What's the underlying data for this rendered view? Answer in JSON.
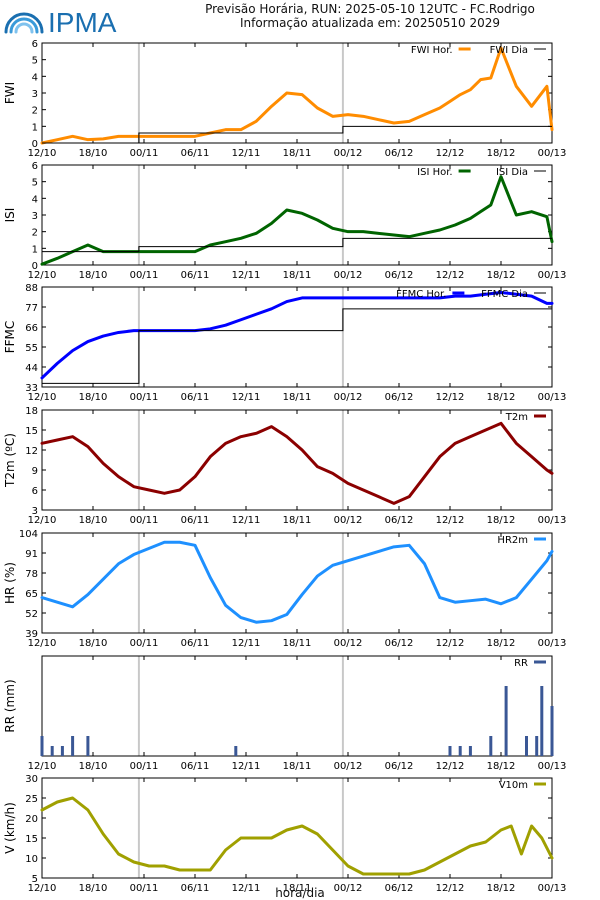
{
  "header": {
    "logo_text": "IPMA",
    "line1": "Previsão Horária, RUN: 2025-05-10 12UTC - FC.Rodrigo",
    "line2": "Informação atualizada em: 20250510 2029"
  },
  "x_axis_title": "hora/dia",
  "x_ticks": [
    "12/10",
    "18/10",
    "00/11",
    "06/11",
    "12/11",
    "18/11",
    "00/12",
    "06/12",
    "12/12",
    "18/12",
    "00/13"
  ],
  "colors": {
    "fwi": "#ff8c00",
    "isi": "#006400",
    "ffmc": "#0000ff",
    "t2m": "#8b0000",
    "hr2m": "#1e90ff",
    "rr": "#3a5795",
    "v10m": "#a0a000",
    "daily": "#000000",
    "grid": "#c8c8c8"
  },
  "chart_data": [
    {
      "type": "line",
      "ylabel": "FWI",
      "ylim": [
        0,
        6
      ],
      "yticks": [
        0,
        1,
        2,
        3,
        4,
        5,
        6
      ],
      "legend": [
        "FWI Hor.",
        "FWI Dia"
      ],
      "series": [
        {
          "name": "FWI Hor.",
          "color": "#ff8c00",
          "x": [
            0,
            3,
            6,
            9,
            12,
            15,
            18,
            21,
            24,
            27,
            30,
            33,
            36,
            39,
            42,
            45,
            48,
            51,
            54,
            57,
            60,
            63,
            66,
            69,
            72,
            75,
            78,
            80,
            82,
            84,
            86,
            88,
            90,
            93,
            96,
            99,
            100
          ],
          "y": [
            0.0,
            0.2,
            0.4,
            0.2,
            0.25,
            0.4,
            0.4,
            0.4,
            0.4,
            0.4,
            0.4,
            0.6,
            0.8,
            0.8,
            1.3,
            2.2,
            3.0,
            2.9,
            2.1,
            1.6,
            1.7,
            1.6,
            1.4,
            1.2,
            1.3,
            1.7,
            2.1,
            2.5,
            2.9,
            3.2,
            3.8,
            3.9,
            5.7,
            3.4,
            2.2,
            3.4,
            0.8
          ]
        },
        {
          "name": "FWI Dia",
          "color": "#000000",
          "step": true,
          "x": [
            0,
            19,
            19,
            59,
            59,
            100
          ],
          "y": [
            0,
            0,
            0.6,
            0.6,
            1.0,
            1.0
          ]
        }
      ]
    },
    {
      "type": "line",
      "ylabel": "ISI",
      "ylim": [
        0,
        6
      ],
      "yticks": [
        0,
        1,
        2,
        3,
        4,
        5,
        6
      ],
      "legend": [
        "ISI Hor.",
        "ISI Dia"
      ],
      "series": [
        {
          "name": "ISI Hor.",
          "color": "#006400",
          "x": [
            0,
            3,
            6,
            9,
            12,
            15,
            18,
            21,
            24,
            27,
            30,
            33,
            36,
            39,
            42,
            45,
            48,
            51,
            54,
            57,
            60,
            63,
            66,
            69,
            72,
            75,
            78,
            81,
            84,
            86,
            88,
            90,
            93,
            96,
            99,
            100
          ],
          "y": [
            0.05,
            0.4,
            0.8,
            1.2,
            0.8,
            0.8,
            0.8,
            0.8,
            0.8,
            0.8,
            0.8,
            1.2,
            1.4,
            1.6,
            1.9,
            2.5,
            3.3,
            3.1,
            2.7,
            2.2,
            2.0,
            2.0,
            1.9,
            1.8,
            1.7,
            1.9,
            2.1,
            2.4,
            2.8,
            3.2,
            3.6,
            5.3,
            3.0,
            3.2,
            2.9,
            1.4
          ]
        },
        {
          "name": "ISI Dia",
          "color": "#000000",
          "step": true,
          "x": [
            0,
            19,
            19,
            59,
            59,
            100
          ],
          "y": [
            0.8,
            0.8,
            1.1,
            1.1,
            1.6,
            1.6
          ]
        }
      ]
    },
    {
      "type": "line",
      "ylabel": "FFMC",
      "ylim": [
        33,
        88
      ],
      "yticks": [
        33,
        44,
        55,
        66,
        77,
        88
      ],
      "legend": [
        "FFMC Hor.",
        "FFMC Dia"
      ],
      "series": [
        {
          "name": "FFMC Hor.",
          "color": "#0000ff",
          "x": [
            0,
            3,
            6,
            9,
            12,
            15,
            18,
            21,
            24,
            27,
            30,
            33,
            36,
            39,
            42,
            45,
            48,
            51,
            54,
            57,
            60,
            63,
            66,
            69,
            72,
            75,
            78,
            81,
            84,
            87,
            90,
            93,
            96,
            99,
            100
          ],
          "y": [
            38,
            46,
            53,
            58,
            61,
            63,
            64,
            64,
            64,
            64,
            64,
            65,
            67,
            70,
            73,
            76,
            80,
            82,
            82,
            82,
            82,
            82,
            82,
            82,
            82,
            82,
            82,
            83,
            83,
            84,
            85,
            84,
            83,
            79,
            79
          ]
        },
        {
          "name": "FFMC Dia",
          "color": "#000000",
          "step": true,
          "x": [
            0,
            19,
            19,
            59,
            59,
            100
          ],
          "y": [
            35,
            35,
            64,
            64,
            76,
            76
          ]
        }
      ]
    },
    {
      "type": "line",
      "ylabel": "T2m (ºC)",
      "ylim": [
        3,
        18
      ],
      "yticks": [
        3,
        6,
        9,
        12,
        15,
        18
      ],
      "legend": [
        "T2m"
      ],
      "series": [
        {
          "name": "T2m",
          "color": "#8b0000",
          "x": [
            0,
            3,
            6,
            9,
            12,
            15,
            18,
            21,
            24,
            27,
            30,
            33,
            36,
            39,
            42,
            45,
            48,
            51,
            54,
            57,
            60,
            63,
            66,
            69,
            72,
            75,
            78,
            81,
            84,
            87,
            90,
            93,
            96,
            99,
            100
          ],
          "y": [
            13,
            13.5,
            14,
            12.5,
            10,
            8,
            6.5,
            6,
            5.5,
            6,
            8,
            11,
            13,
            14,
            14.5,
            15.5,
            14,
            12,
            9.5,
            8.5,
            7,
            6,
            5,
            4,
            5,
            8,
            11,
            13,
            14,
            15,
            16,
            13,
            11,
            9,
            8.5
          ]
        }
      ]
    },
    {
      "type": "line",
      "ylabel": "HR (%)",
      "ylim": [
        39,
        104
      ],
      "yticks": [
        39,
        52,
        65,
        78,
        91,
        104
      ],
      "legend": [
        "HR2m"
      ],
      "series": [
        {
          "name": "HR2m",
          "color": "#1e90ff",
          "x": [
            0,
            3,
            6,
            9,
            12,
            15,
            18,
            21,
            24,
            27,
            30,
            33,
            36,
            39,
            42,
            45,
            48,
            51,
            54,
            57,
            60,
            63,
            66,
            69,
            72,
            75,
            78,
            81,
            84,
            87,
            90,
            93,
            96,
            99,
            100
          ],
          "y": [
            62,
            59,
            56,
            64,
            74,
            84,
            90,
            94,
            98,
            98,
            96,
            75,
            57,
            49,
            46,
            47,
            51,
            64,
            76,
            83,
            86,
            89,
            92,
            95,
            96,
            84,
            62,
            59,
            60,
            61,
            58,
            62,
            74,
            86,
            92
          ]
        }
      ]
    },
    {
      "type": "bar",
      "ylabel": "RR (mm)",
      "ylim": [
        0,
        1
      ],
      "legend": [
        "RR"
      ],
      "series": [
        {
          "name": "RR",
          "color": "#3a5795",
          "x": [
            0,
            2,
            4,
            6,
            9,
            38,
            80,
            82,
            84,
            88,
            91,
            95,
            97,
            98,
            100
          ],
          "values": [
            0.2,
            0.1,
            0.1,
            0.2,
            0.2,
            0.1,
            0.1,
            0.1,
            0.1,
            0.2,
            0.7,
            0.2,
            0.2,
            0.7,
            0.5
          ]
        }
      ]
    },
    {
      "type": "line",
      "ylabel": "V (km/h)",
      "ylim": [
        5,
        30
      ],
      "yticks": [
        5,
        10,
        15,
        20,
        25,
        30
      ],
      "legend": [
        "V10m"
      ],
      "series": [
        {
          "name": "V10m",
          "color": "#a0a000",
          "x": [
            0,
            3,
            6,
            9,
            12,
            15,
            18,
            21,
            24,
            27,
            30,
            33,
            36,
            39,
            42,
            45,
            48,
            51,
            54,
            57,
            60,
            63,
            66,
            69,
            72,
            75,
            78,
            81,
            84,
            87,
            90,
            92,
            94,
            96,
            98,
            100
          ],
          "y": [
            22,
            24,
            25,
            22,
            16,
            11,
            9,
            8,
            8,
            7,
            7,
            7,
            12,
            15,
            15,
            15,
            17,
            18,
            16,
            12,
            8,
            6,
            6,
            6,
            6,
            7,
            9,
            11,
            13,
            14,
            17,
            18,
            11,
            18,
            15,
            10
          ]
        }
      ]
    }
  ]
}
